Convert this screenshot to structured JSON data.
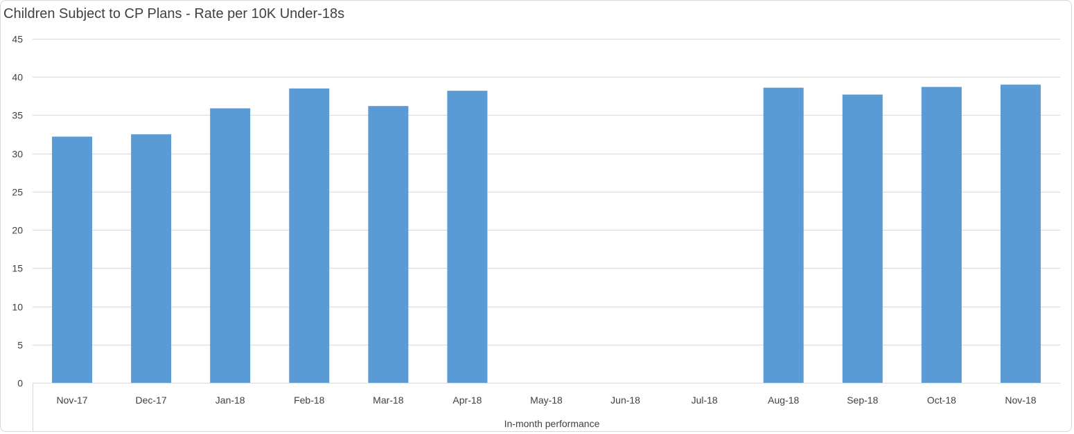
{
  "chart_data": {
    "type": "bar",
    "title": "Children Subject to CP Plans - Rate per 10K Under-18s",
    "categories": [
      "Nov-17",
      "Dec-17",
      "Jan-18",
      "Feb-18",
      "Mar-18",
      "Apr-18",
      "May-18",
      "Jun-18",
      "Jul-18",
      "Aug-18",
      "Sep-18",
      "Oct-18",
      "Nov-18"
    ],
    "series": [
      {
        "values": [
          32.2,
          32.5,
          35.9,
          38.5,
          36.2,
          38.2,
          null,
          null,
          null,
          38.6,
          37.7,
          38.7,
          39.0
        ]
      }
    ],
    "category_group_label": "In-month performance",
    "ylim": [
      0,
      45
    ],
    "yticks": [
      0,
      5,
      10,
      15,
      20,
      25,
      30,
      35,
      40,
      45
    ],
    "grid": true,
    "legend": "none",
    "bar_color": "#5b9bd5",
    "grid_color": "#d9d9d9",
    "text_color": "#404040"
  }
}
